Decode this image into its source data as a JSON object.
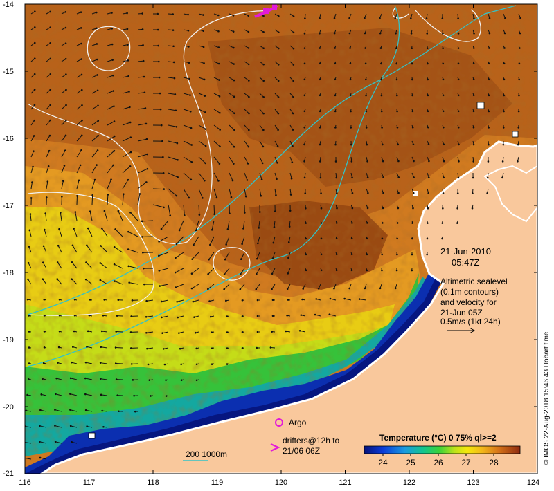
{
  "date": "21-Jun-2010",
  "time": "05:47Z",
  "altimetry_note": [
    "Altimetric sealevel",
    "(0.1m contours)",
    "and velocity for",
    "21-Jun 05Z",
    "0.5m/s (1kt 24h)"
  ],
  "argo_label": "Argo",
  "drifters_label": [
    "drifters@12h to",
    "21/06 06Z"
  ],
  "depth_label": "200  1000m",
  "colorbar_title": "Temperature (°C) 0 75% ql>=2",
  "colorbar_ticks": [
    "24",
    "25",
    "26",
    "27",
    "28"
  ],
  "copyright": "© IMOS 22-Aug-2018 15:46:43 Hobart time",
  "x_ticks": [
    "116",
    "117",
    "118",
    "119",
    "120",
    "121",
    "122",
    "123",
    "124"
  ],
  "y_ticks": [
    "-14",
    "-15",
    "-16",
    "-17",
    "-18",
    "-19",
    "-20",
    "-21"
  ],
  "colors": {
    "land": "#f9c89c",
    "contour": "#f2f2f2",
    "isobath": "#34c2c6",
    "argo": "#e21bd8",
    "arrow": "#111111"
  }
}
